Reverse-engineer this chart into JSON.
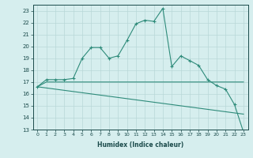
{
  "xlabel": "Humidex (Indice chaleur)",
  "x_main": [
    0,
    1,
    2,
    3,
    4,
    5,
    6,
    7,
    8,
    9,
    10,
    11,
    12,
    13,
    14,
    15,
    16,
    17,
    18,
    19,
    20,
    21,
    22,
    23
  ],
  "y_main": [
    16.6,
    17.2,
    17.2,
    17.2,
    17.3,
    19.0,
    19.9,
    19.9,
    19.0,
    19.2,
    20.5,
    21.9,
    22.2,
    22.1,
    23.2,
    18.3,
    19.2,
    18.8,
    18.4,
    17.2,
    16.7,
    16.4,
    15.1,
    12.8
  ],
  "y_line2": [
    16.6,
    17.0,
    17.0,
    17.0,
    17.0,
    17.0,
    17.0,
    17.0,
    17.0,
    17.0,
    17.0,
    17.0,
    17.0,
    17.0,
    17.0,
    17.0,
    17.0,
    17.0,
    17.0,
    17.0,
    17.0,
    17.0,
    17.0,
    17.0
  ],
  "y_line3": [
    16.6,
    16.5,
    16.4,
    16.3,
    16.2,
    16.1,
    16.0,
    15.9,
    15.8,
    15.7,
    15.6,
    15.5,
    15.4,
    15.3,
    15.2,
    15.1,
    15.0,
    14.9,
    14.8,
    14.7,
    14.6,
    14.5,
    14.4,
    14.3
  ],
  "ylim": [
    13,
    23.5
  ],
  "xlim": [
    -0.5,
    23.5
  ],
  "color": "#2e8b7a",
  "bg_color": "#d6eeee",
  "grid_color": "#b8d8d8",
  "ylabel_ticks": [
    13,
    14,
    15,
    16,
    17,
    18,
    19,
    20,
    21,
    22,
    23
  ],
  "xtick_fontsize": 4.5,
  "ytick_fontsize": 5.0,
  "xlabel_fontsize": 5.5
}
